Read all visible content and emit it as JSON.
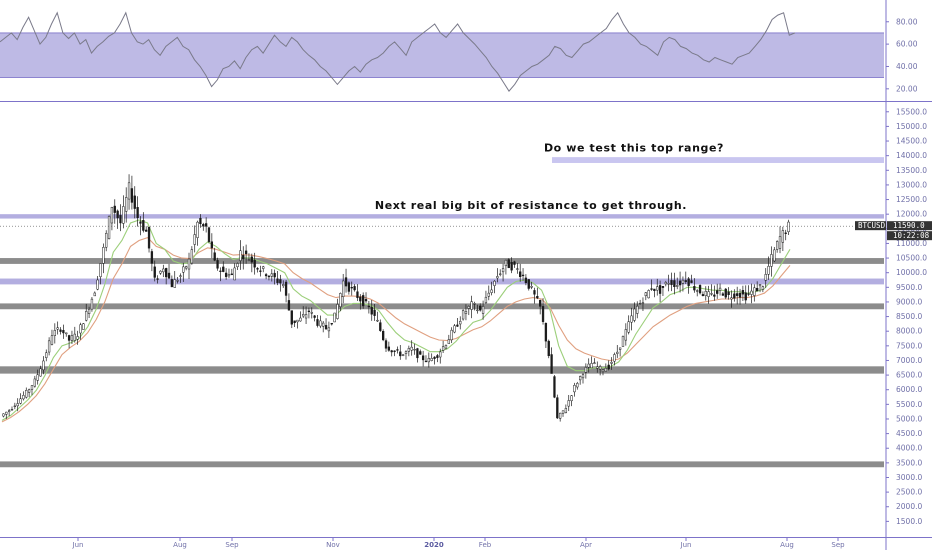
{
  "chart_data": [
    {
      "panel": "rsi",
      "type": "line",
      "ylim": [
        10,
        95
      ],
      "yticks": [
        "80.00",
        "60.00",
        "40.00",
        "20.00"
      ],
      "band": [
        30,
        70
      ],
      "colors": {
        "line": "#7a7a8a",
        "band": "#b3aee0",
        "bandEdge": "#7d73c9"
      },
      "series": [
        {
          "values": [
            62,
            66,
            70,
            64,
            75,
            84,
            72,
            60,
            66,
            78,
            88,
            70,
            65,
            70,
            60,
            64,
            52,
            58,
            62,
            67,
            70,
            78,
            88,
            70,
            62,
            60,
            64,
            55,
            50,
            58,
            62,
            66,
            58,
            55,
            46,
            40,
            32,
            22,
            28,
            38,
            40,
            45,
            38,
            48,
            55,
            58,
            52,
            60,
            68,
            62,
            58,
            66,
            62,
            55,
            50,
            46,
            40,
            36,
            30,
            24,
            30,
            36,
            40,
            35,
            42,
            46,
            48,
            52,
            58,
            62,
            56,
            50,
            62,
            66,
            70,
            74,
            78,
            70,
            66,
            72,
            78,
            70,
            65,
            60,
            54,
            48,
            40,
            34,
            26,
            18,
            24,
            32,
            36,
            40,
            42,
            46,
            50,
            58,
            56,
            50,
            48,
            54,
            60,
            62,
            66,
            70,
            74,
            82,
            88,
            78,
            70,
            66,
            60,
            58,
            54,
            50,
            62,
            66,
            64,
            58,
            56,
            52,
            50,
            46,
            44,
            48,
            46,
            44,
            42,
            48,
            50,
            52,
            58,
            64,
            72,
            82,
            86,
            88,
            68,
            70
          ]
        }
      ]
    },
    {
      "panel": "price",
      "type": "candlestick",
      "ylim": [
        1000,
        15800
      ],
      "yticks": [
        "15500.0",
        "15000.0",
        "14500.0",
        "14000.0",
        "13500.0",
        "13000.0",
        "12500.0",
        "12000.0",
        "11500.0",
        "11000.0",
        "10500.0",
        "10000.0",
        "9500.0",
        "9000.0",
        "8500.0",
        "8000.0",
        "7500.0",
        "7000.0",
        "6500.0",
        "6000.0",
        "5500.0",
        "5000.0",
        "4500.0",
        "4000.0",
        "3500.0",
        "3000.0",
        "2500.0",
        "2000.0",
        "1500.0"
      ],
      "x_labels": [
        "Jun",
        "Aug",
        "Sep",
        "Nov",
        "2020",
        "Feb",
        "Apr",
        "Jun",
        "Aug",
        "Sep"
      ],
      "year_label": "2020",
      "close": [
        5100,
        5300,
        5600,
        5900,
        6300,
        7000,
        7900,
        8100,
        7700,
        7900,
        8600,
        9400,
        10800,
        12300,
        11700,
        12900,
        11900,
        11400,
        9700,
        10200,
        9600,
        9900,
        10400,
        11700,
        11500,
        10300,
        10000,
        9900,
        10700,
        10500,
        10200,
        10000,
        9800,
        9600,
        8300,
        8400,
        8700,
        8300,
        8100,
        8500,
        9700,
        9400,
        9100,
        8800,
        8300,
        7500,
        7300,
        7200,
        7400,
        7100,
        7000,
        7200,
        7600,
        8100,
        8600,
        8900,
        8700,
        9300,
        9900,
        10300,
        10200,
        9900,
        9400,
        8800,
        7200,
        5000,
        5400,
        6100,
        6600,
        6900,
        6700,
        6800,
        7300,
        8000,
        8700,
        9100,
        9500,
        9400,
        9700,
        9600,
        9800,
        9500,
        9300,
        9200,
        9400,
        9200,
        9300,
        9200,
        9400,
        9600,
        10500,
        11200,
        11590
      ],
      "emas": [
        {
          "color": "#e0a080",
          "values": [
            4900,
            5050,
            5250,
            5500,
            5800,
            6200,
            6700,
            7200,
            7450,
            7650,
            7950,
            8400,
            9000,
            9800,
            10300,
            10900,
            11100,
            11200,
            10900,
            10800,
            10600,
            10500,
            10480,
            10700,
            10850,
            10800,
            10700,
            10600,
            10620,
            10600,
            10550,
            10480,
            10400,
            10300,
            10000,
            9800,
            9650,
            9450,
            9250,
            9150,
            9200,
            9200,
            9180,
            9100,
            8950,
            8700,
            8450,
            8250,
            8100,
            7950,
            7800,
            7700,
            7680,
            7750,
            7900,
            8050,
            8150,
            8350,
            8600,
            8850,
            9000,
            9100,
            9150,
            9100,
            8800,
            8200,
            7700,
            7400,
            7250,
            7150,
            7050,
            7000,
            7050,
            7250,
            7550,
            7850,
            8150,
            8350,
            8550,
            8700,
            8850,
            8950,
            9000,
            9050,
            9100,
            9100,
            9150,
            9150,
            9200,
            9300,
            9550,
            9900,
            10250
          ]
        },
        {
          "color": "#9ccf7a",
          "values": [
            4950,
            5120,
            5380,
            5650,
            5980,
            6480,
            7100,
            7500,
            7600,
            7750,
            8150,
            8750,
            9600,
            10700,
            11100,
            11700,
            11800,
            11700,
            11000,
            10800,
            10400,
            10300,
            10350,
            10800,
            11050,
            10900,
            10650,
            10450,
            10520,
            10500,
            10400,
            10300,
            10150,
            10000,
            9450,
            9200,
            9050,
            8800,
            8550,
            8550,
            8850,
            8950,
            8950,
            8900,
            8700,
            8300,
            7950,
            7700,
            7600,
            7450,
            7300,
            7300,
            7400,
            7650,
            8000,
            8300,
            8400,
            8700,
            9100,
            9500,
            9700,
            9750,
            9650,
            9400,
            8700,
            7500,
            6800,
            6650,
            6650,
            6750,
            6750,
            6780,
            6950,
            7350,
            7900,
            8350,
            8800,
            9000,
            9250,
            9350,
            9500,
            9500,
            9450,
            9400,
            9400,
            9350,
            9350,
            9300,
            9350,
            9450,
            9800,
            10300,
            10800
          ]
        }
      ],
      "zones": [
        {
          "low": 11850,
          "high": 12000,
          "color": "#b3aee0"
        },
        {
          "low": 10300,
          "high": 10500,
          "color": "#8c8c8c"
        },
        {
          "low": 9600,
          "high": 9800,
          "color": "#b3aee0"
        },
        {
          "low": 8750,
          "high": 8950,
          "color": "#8c8c8c"
        },
        {
          "low": 6550,
          "high": 6800,
          "color": "#8c8c8c"
        },
        {
          "low": 3350,
          "high": 3550,
          "color": "#8c8c8c"
        }
      ],
      "target_zone": {
        "low": 13750,
        "high": 13950,
        "color": "#c9c6f0"
      },
      "last_price": 11590,
      "price_badge": {
        "symbol": "BTCUSD",
        "price": "11590.0",
        "countdown": "10:22:08",
        "color": "#333333"
      },
      "annotations": [
        {
          "text": "Do we test this top range?",
          "price": 14150
        },
        {
          "text": "Next real big bit of resistance to get through.",
          "price": 12180
        }
      ],
      "colors": {
        "candle": "#1a1a1a",
        "axis": "#7d73c9",
        "text": "#7070a8",
        "priceLine": "#555555"
      }
    }
  ]
}
